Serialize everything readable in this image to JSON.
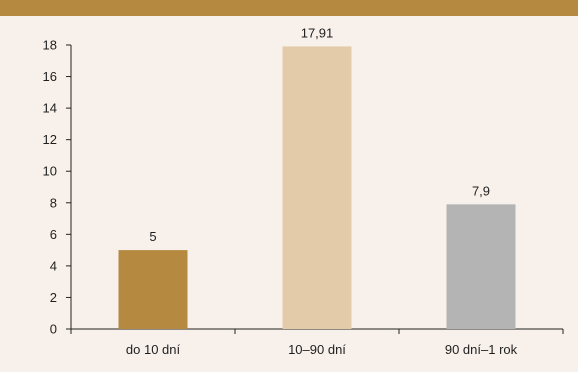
{
  "chart_data": {
    "type": "bar",
    "title": "",
    "xlabel": "",
    "ylabel": "",
    "categories": [
      "do 10 dní",
      "10–90 dní",
      "90 dní–1 rok"
    ],
    "values": [
      5,
      17.91,
      7.9
    ],
    "value_labels": [
      "5",
      "17,91",
      "7,9"
    ],
    "bar_colors": [
      "#b5893f",
      "#e3cba9",
      "#b4b4b4"
    ],
    "ylim": [
      0,
      18
    ],
    "yticks": [
      0,
      2,
      4,
      6,
      8,
      10,
      12,
      14,
      16,
      18
    ],
    "grid": false,
    "legend": "none"
  },
  "colors": {
    "background": "#f8f1eb",
    "header_band": "#b5893f",
    "axis": "#222222"
  }
}
